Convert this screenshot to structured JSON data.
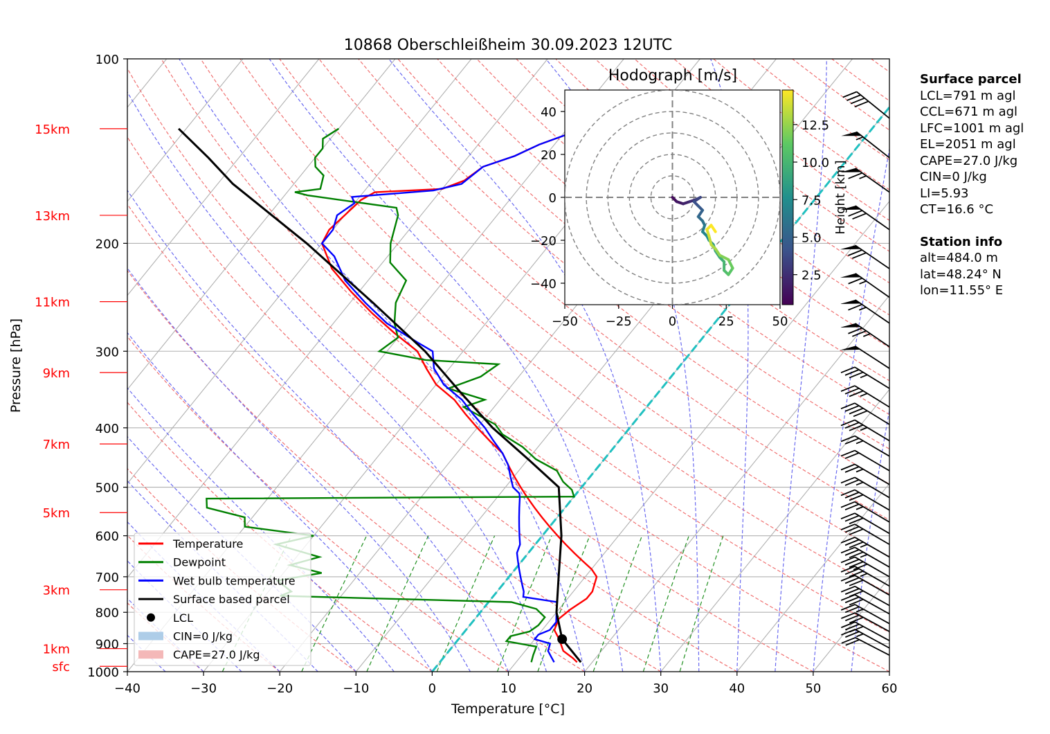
{
  "chart_data": {
    "type": "skew-t log-p sounding",
    "title": "10868 Oberschleißheim 30.09.2023 12UTC",
    "xlabel": "Temperature [°C]",
    "ylabel": "Pressure [hPa]",
    "xlim": [
      -40,
      60
    ],
    "ylim_hpa": [
      1000,
      100
    ],
    "y_scale": "log",
    "grid": true,
    "x_ticks": [
      "−40",
      "−30",
      "−20",
      "−10",
      "0",
      "10",
      "20",
      "30",
      "40",
      "50",
      "60"
    ],
    "y_ticks": [
      {
        "p": 100,
        "label": "100"
      },
      {
        "p": 200,
        "label": "200"
      },
      {
        "p": 300,
        "label": "300"
      },
      {
        "p": 400,
        "label": "400"
      },
      {
        "p": 500,
        "label": "500"
      },
      {
        "p": 600,
        "label": "600"
      },
      {
        "p": 700,
        "label": "700"
      },
      {
        "p": 800,
        "label": "800"
      },
      {
        "p": 900,
        "label": "900"
      },
      {
        "p": 1000,
        "label": "1000"
      }
    ],
    "height_labels": [
      {
        "p": 980,
        "label": "sfc"
      },
      {
        "p": 917,
        "label": "1km"
      },
      {
        "p": 735,
        "label": "3km"
      },
      {
        "p": 550,
        "label": "5km"
      },
      {
        "p": 425,
        "label": "7km"
      },
      {
        "p": 325,
        "label": "9km"
      },
      {
        "p": 249,
        "label": "11km"
      },
      {
        "p": 180,
        "label": "13km"
      },
      {
        "p": 130,
        "label": "15km"
      }
    ],
    "height_label_color": "#ff0000",
    "series": [
      {
        "name": "Temperature",
        "color": "#ff0000",
        "points": [
          [
            18,
            965
          ],
          [
            17,
            950
          ],
          [
            15,
            925
          ],
          [
            13.2,
            885
          ],
          [
            11.6,
            855
          ],
          [
            11,
            820
          ],
          [
            11.5,
            792
          ],
          [
            12.5,
            760
          ],
          [
            12.5,
            740
          ],
          [
            12,
            720
          ],
          [
            11.5,
            700
          ],
          [
            10,
            680
          ],
          [
            8,
            660
          ],
          [
            6,
            640
          ],
          [
            4,
            620
          ],
          [
            2,
            600
          ],
          [
            0,
            580
          ],
          [
            -2,
            560
          ],
          [
            -4,
            540
          ],
          [
            -6,
            520
          ],
          [
            -8,
            500
          ],
          [
            -10,
            480
          ],
          [
            -12,
            460
          ],
          [
            -14,
            440
          ],
          [
            -17,
            420
          ],
          [
            -20,
            400
          ],
          [
            -23,
            380
          ],
          [
            -26,
            360
          ],
          [
            -30,
            340
          ],
          [
            -33,
            320
          ],
          [
            -36,
            300
          ],
          [
            -41,
            280
          ],
          [
            -46,
            260
          ],
          [
            -51,
            240
          ],
          [
            -56,
            220
          ],
          [
            -60,
            200
          ],
          [
            -60.5,
            190
          ],
          [
            -60,
            180
          ],
          [
            -59.5,
            170
          ],
          [
            -58.5,
            165
          ],
          [
            -50,
            163
          ],
          [
            -48,
            158
          ],
          [
            -47,
            150
          ],
          [
            -44,
            144
          ],
          [
            -42,
            138
          ],
          [
            -39,
            132
          ],
          [
            -39,
            130
          ]
        ]
      },
      {
        "name": "Dewpoint",
        "color": "#008000",
        "points": [
          [
            12,
            965
          ],
          [
            11.5,
            940
          ],
          [
            11,
            910
          ],
          [
            6.5,
            892
          ],
          [
            6.5,
            875
          ],
          [
            8.5,
            860
          ],
          [
            9,
            840
          ],
          [
            9,
            815
          ],
          [
            7,
            790
          ],
          [
            3,
            770
          ],
          [
            -28,
            752
          ],
          [
            -27,
            740
          ],
          [
            -30,
            710
          ],
          [
            -25,
            690
          ],
          [
            -30,
            670
          ],
          [
            -27,
            650
          ],
          [
            -34,
            620
          ],
          [
            -30,
            600
          ],
          [
            -40,
            580
          ],
          [
            -41,
            560
          ],
          [
            -47,
            540
          ],
          [
            -48,
            522
          ],
          [
            0,
            518
          ],
          [
            -1,
            505
          ],
          [
            -3,
            490
          ],
          [
            -5,
            470
          ],
          [
            -9,
            450
          ],
          [
            -12,
            430
          ],
          [
            -16,
            410
          ],
          [
            -18,
            395
          ],
          [
            -24,
            370
          ],
          [
            -22,
            360
          ],
          [
            -28,
            345
          ],
          [
            -25,
            330
          ],
          [
            -24,
            315
          ],
          [
            -34,
            310
          ],
          [
            -41,
            300
          ],
          [
            -40,
            285
          ],
          [
            -42,
            270
          ],
          [
            -44,
            250
          ],
          [
            -45,
            230
          ],
          [
            -49,
            215
          ],
          [
            -51,
            200
          ],
          [
            -53,
            180
          ],
          [
            -54,
            175
          ],
          [
            -67,
            167
          ],
          [
            -69,
            165
          ],
          [
            -66,
            163
          ],
          [
            -67,
            155
          ],
          [
            -69,
            150
          ],
          [
            -70,
            145
          ],
          [
            -70,
            140
          ],
          [
            -71,
            135
          ],
          [
            -70,
            130
          ]
        ]
      },
      {
        "name": "Wet bulb temperature",
        "color": "#0000ff",
        "points": [
          [
            15,
            965
          ],
          [
            14,
            945
          ],
          [
            13,
            925
          ],
          [
            12.5,
            900
          ],
          [
            10,
            885
          ],
          [
            10,
            870
          ],
          [
            11,
            855
          ],
          [
            11,
            830
          ],
          [
            10,
            800
          ],
          [
            9,
            770
          ],
          [
            4,
            755
          ],
          [
            3.5,
            740
          ],
          [
            2.5,
            720
          ],
          [
            1.5,
            700
          ],
          [
            0.5,
            680
          ],
          [
            -0.5,
            660
          ],
          [
            -1.5,
            640
          ],
          [
            -2,
            620
          ],
          [
            -3,
            600
          ],
          [
            -4,
            580
          ],
          [
            -5,
            560
          ],
          [
            -6,
            540
          ],
          [
            -7,
            520
          ],
          [
            -7.5,
            512
          ],
          [
            -9,
            500
          ],
          [
            -10.5,
            480
          ],
          [
            -12,
            460
          ],
          [
            -14,
            440
          ],
          [
            -16.5,
            420
          ],
          [
            -19,
            400
          ],
          [
            -22,
            380
          ],
          [
            -25,
            360
          ],
          [
            -29,
            340
          ],
          [
            -32,
            320
          ],
          [
            -34,
            300
          ],
          [
            -37,
            290
          ],
          [
            -43,
            270
          ],
          [
            -48,
            250
          ],
          [
            -53,
            230
          ],
          [
            -57,
            210
          ],
          [
            -60,
            200
          ],
          [
            -60,
            190
          ],
          [
            -61,
            180
          ],
          [
            -60,
            172
          ],
          [
            -61,
            168
          ],
          [
            -51,
            164
          ],
          [
            -48,
            160
          ],
          [
            -47,
            150
          ],
          [
            -44,
            144
          ],
          [
            -42,
            138
          ],
          [
            -39,
            132
          ],
          [
            -39,
            130
          ]
        ]
      },
      {
        "name": "Surface based parcel",
        "color": "#000000",
        "points": [
          [
            18.5,
            965
          ],
          [
            13.6,
            885
          ],
          [
            10,
            800
          ],
          [
            6.5,
            700
          ],
          [
            2.5,
            600
          ],
          [
            -3,
            500
          ],
          [
            -10,
            450
          ],
          [
            -18,
            400
          ],
          [
            -26,
            350
          ],
          [
            -35,
            300
          ],
          [
            -47,
            250
          ],
          [
            -62,
            200
          ],
          [
            -78,
            160
          ],
          [
            -84,
            145
          ],
          [
            -91,
            130
          ]
        ]
      }
    ],
    "lcl": {
      "name": "LCL",
      "t": 13.6,
      "p": 885
    },
    "cin": {
      "name": "CIN=0 J/kg",
      "color": "#aecde8"
    },
    "cape": {
      "name": "CAPE=27.0 J/kg",
      "color": "#f4b8b8"
    },
    "wind_barbs_kt": [
      [
        940,
        20,
        240
      ],
      [
        915,
        25,
        250
      ],
      [
        890,
        30,
        250
      ],
      [
        860,
        30,
        250
      ],
      [
        835,
        25,
        255
      ],
      [
        805,
        30,
        255
      ],
      [
        780,
        30,
        255
      ],
      [
        750,
        30,
        260
      ],
      [
        725,
        35,
        260
      ],
      [
        700,
        40,
        260
      ],
      [
        675,
        35,
        260
      ],
      [
        650,
        35,
        260
      ],
      [
        620,
        30,
        265
      ],
      [
        595,
        30,
        265
      ],
      [
        570,
        25,
        265
      ],
      [
        545,
        30,
        265
      ],
      [
        520,
        25,
        265
      ],
      [
        495,
        25,
        265
      ],
      [
        470,
        20,
        265
      ],
      [
        445,
        25,
        265
      ],
      [
        420,
        35,
        270
      ],
      [
        395,
        40,
        275
      ],
      [
        370,
        35,
        275
      ],
      [
        345,
        35,
        275
      ],
      [
        320,
        50,
        285
      ],
      [
        295,
        75,
        295
      ],
      [
        270,
        65,
        295
      ],
      [
        245,
        65,
        300
      ],
      [
        220,
        70,
        295
      ],
      [
        190,
        70,
        300
      ],
      [
        165,
        65,
        300
      ],
      [
        145,
        55,
        320
      ],
      [
        125,
        40,
        325
      ]
    ],
    "hodograph": {
      "title": "Hodograph [m/s]",
      "xlim": [
        -50,
        50
      ],
      "ylim": [
        -50,
        50
      ],
      "x_ticks": [
        "−50",
        "−25",
        "0",
        "25",
        "50"
      ],
      "y_ticks": [
        "−40",
        "−20",
        "0",
        "20",
        "40"
      ],
      "rings": [
        10,
        20,
        30,
        40,
        50
      ],
      "colorbar_label": "Height [km]",
      "colorbar_ticks": [
        "2.5",
        "5.0",
        "7.5",
        "10.0",
        "12.5"
      ],
      "colorbar_range": [
        0.5,
        14.8
      ],
      "points": [
        [
          0,
          0,
          0.5
        ],
        [
          2,
          -2,
          1
        ],
        [
          5,
          -3,
          1.5
        ],
        [
          8,
          -2,
          2
        ],
        [
          11,
          -1,
          2.5
        ],
        [
          13,
          0,
          3
        ],
        [
          10,
          -2,
          3.5
        ],
        [
          12,
          -4,
          4
        ],
        [
          14,
          -6,
          4.5
        ],
        [
          12,
          -9,
          5
        ],
        [
          14,
          -11,
          5.5
        ],
        [
          15,
          -13,
          6
        ],
        [
          14,
          -16,
          6.5
        ],
        [
          16,
          -18,
          7
        ],
        [
          17,
          -20,
          7.5
        ],
        [
          19,
          -22,
          8
        ],
        [
          20,
          -25,
          8.5
        ],
        [
          22,
          -28,
          9
        ],
        [
          24,
          -30,
          9.5
        ],
        [
          24,
          -34,
          10
        ],
        [
          26,
          -36,
          10.5
        ],
        [
          28,
          -33,
          11
        ],
        [
          26,
          -29,
          11.5
        ],
        [
          22,
          -27,
          12
        ],
        [
          20,
          -24,
          12.5
        ],
        [
          18,
          -22,
          13
        ],
        [
          17,
          -18,
          13.5
        ],
        [
          16,
          -15,
          14
        ],
        [
          18,
          -13,
          14.5
        ],
        [
          20,
          -16,
          14.8
        ]
      ]
    }
  },
  "info": {
    "surface_header": "Surface parcel",
    "surface_lines": [
      "LCL=791 m agl",
      "CCL=671 m agl",
      "LFC=1001 m agl",
      "EL=2051 m agl",
      "CAPE=27.0 J/kg",
      "CIN=0 J/kg",
      "LI=5.93",
      "CT=16.6 °C"
    ],
    "station_header": "Station info",
    "station_lines": [
      "alt=484.0 m",
      "lat=48.24° N",
      "lon=11.55° E"
    ]
  }
}
